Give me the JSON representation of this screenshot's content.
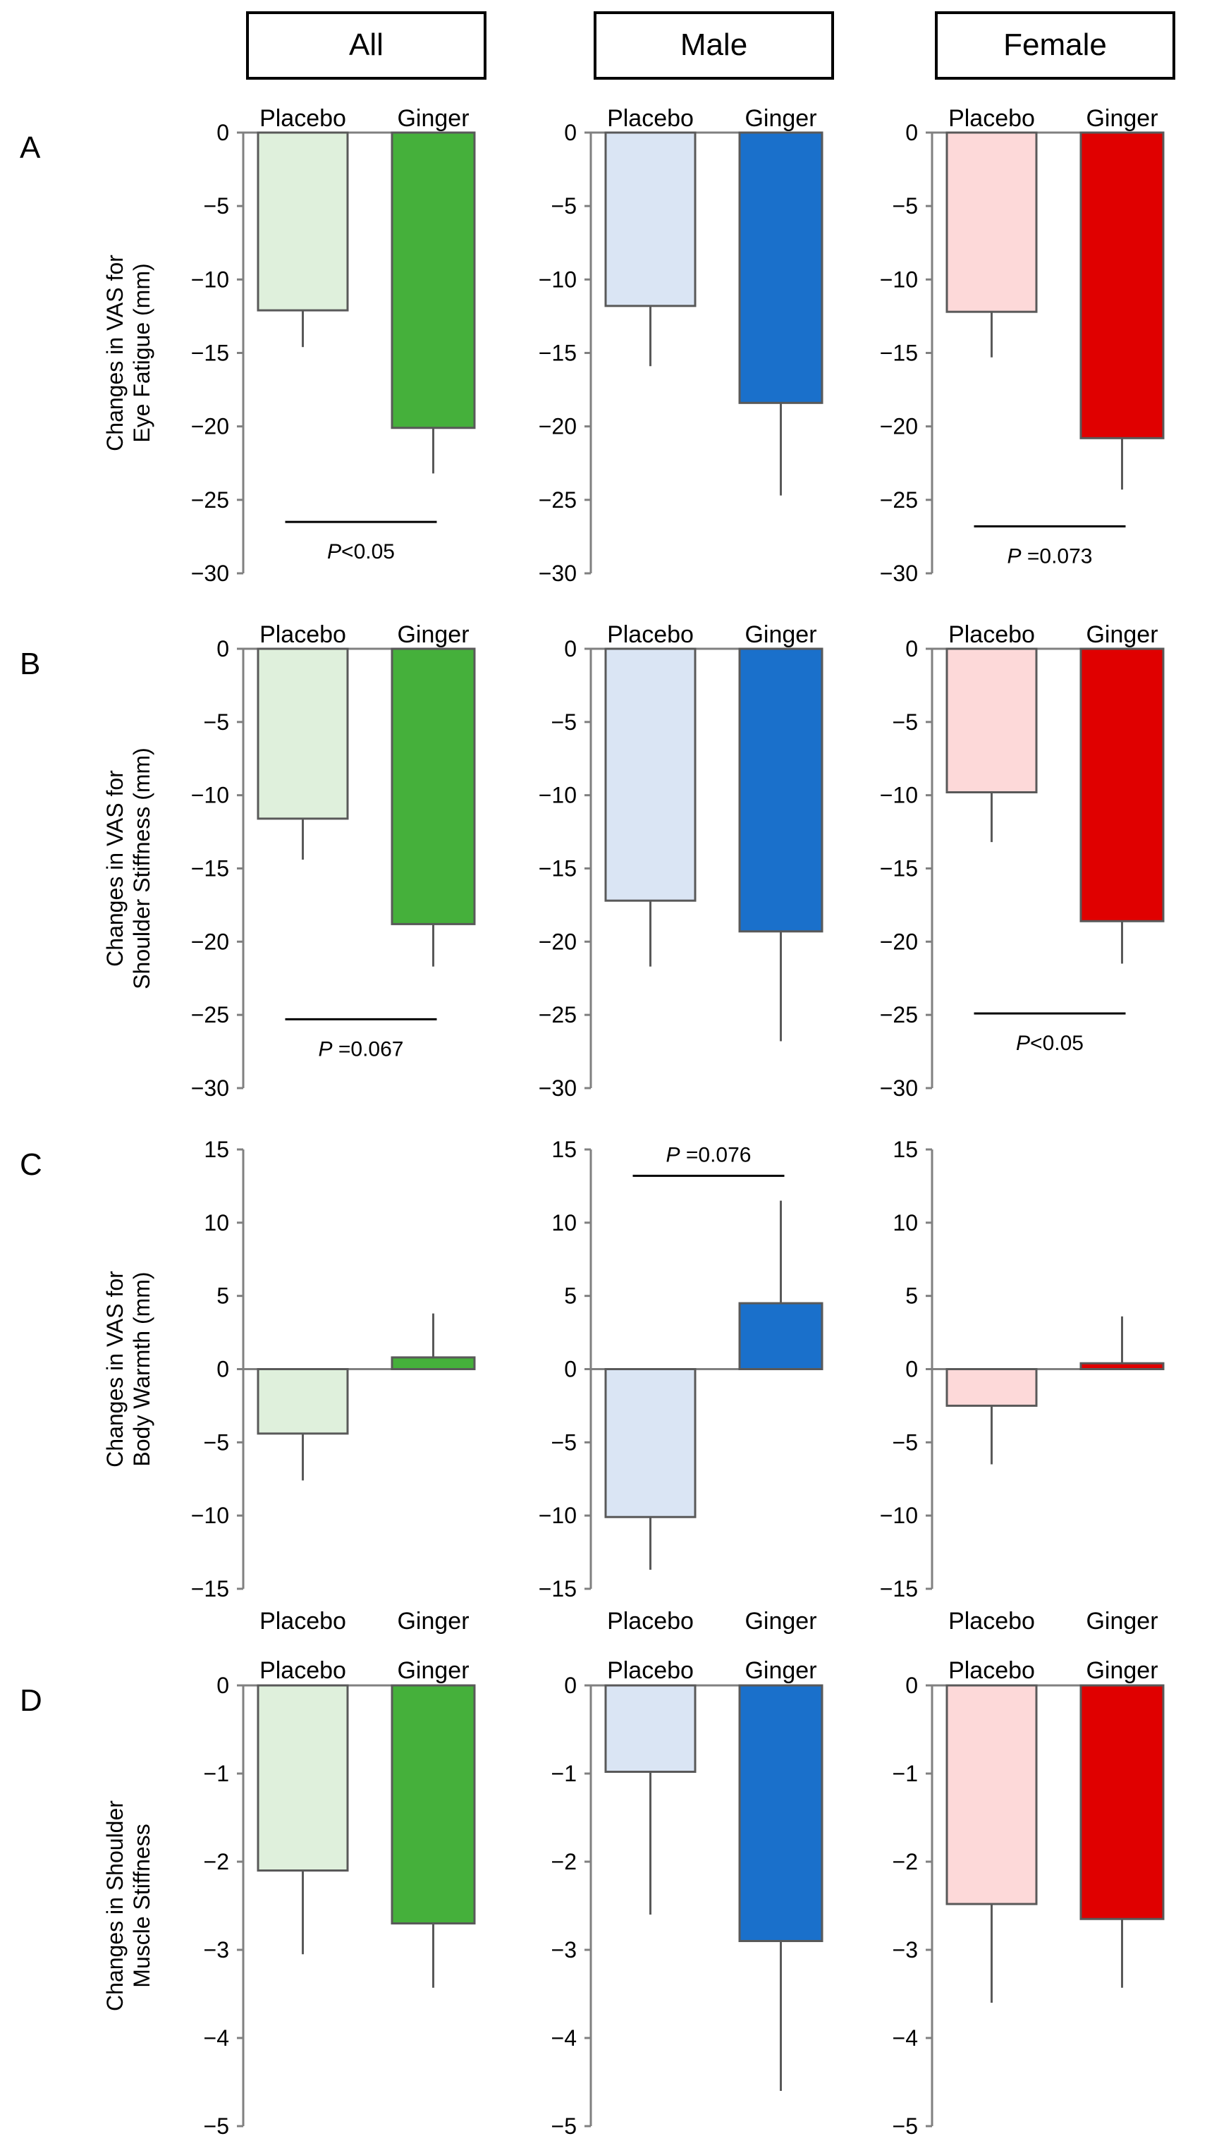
{
  "figure": {
    "column_headers": [
      "All",
      "Male",
      "Female"
    ],
    "colors": {
      "All": {
        "Placebo": "#dff0dc",
        "Ginger": "#45b03b"
      },
      "Male": {
        "Placebo": "#dae5f4",
        "Ginger": "#1a70cb"
      },
      "Female": {
        "Placebo": "#fdd9d9",
        "Ginger": "#e00000"
      },
      "outline": "#595959",
      "axis": "#808080"
    }
  },
  "chart_data": [
    {
      "panel": "A",
      "type": "bar",
      "ylabel": "Changes in VAS for Eye Fatigue (mm)",
      "ylim": [
        -30,
        0
      ],
      "ticks": [
        0,
        -5,
        -10,
        -15,
        -20,
        -25,
        -30
      ],
      "label_position": "top",
      "groups": [
        {
          "group": "All",
          "categories": [
            "Placebo",
            "Ginger"
          ],
          "values": [
            -12.1,
            -20.1
          ],
          "errors": [
            2.5,
            3.1
          ],
          "significance": {
            "text": "P<0.05",
            "italic": "P",
            "rest": "<0.05",
            "level": -26.5
          }
        },
        {
          "group": "Male",
          "categories": [
            "Placebo",
            "Ginger"
          ],
          "values": [
            -11.8,
            -18.4
          ],
          "errors": [
            4.1,
            6.3
          ]
        },
        {
          "group": "Female",
          "categories": [
            "Placebo",
            "Ginger"
          ],
          "values": [
            -12.2,
            -20.8
          ],
          "errors": [
            3.1,
            3.5
          ],
          "significance": {
            "text": "P =0.073",
            "italic": "P",
            "rest": " =0.073",
            "level": -26.8
          }
        }
      ]
    },
    {
      "panel": "B",
      "type": "bar",
      "ylabel": "Changes in VAS for Shoulder Stiffness (mm)",
      "ylim": [
        -30,
        0
      ],
      "ticks": [
        0,
        -5,
        -10,
        -15,
        -20,
        -25,
        -30
      ],
      "label_position": "top",
      "groups": [
        {
          "group": "All",
          "categories": [
            "Placebo",
            "Ginger"
          ],
          "values": [
            -11.6,
            -18.8
          ],
          "errors": [
            2.8,
            2.9
          ],
          "significance": {
            "text": "P =0.067",
            "italic": "P",
            "rest": " =0.067",
            "level": -25.3
          }
        },
        {
          "group": "Male",
          "categories": [
            "Placebo",
            "Ginger"
          ],
          "values": [
            -17.2,
            -19.3
          ],
          "errors": [
            4.5,
            7.5
          ]
        },
        {
          "group": "Female",
          "categories": [
            "Placebo",
            "Ginger"
          ],
          "values": [
            -9.8,
            -18.6
          ],
          "errors": [
            3.4,
            2.9
          ],
          "significance": {
            "text": "P<0.05",
            "italic": "P",
            "rest": "<0.05",
            "level": -24.9
          }
        }
      ]
    },
    {
      "panel": "C",
      "type": "bar",
      "ylabel": "Changes in VAS for Body Warmth (mm)",
      "ylim": [
        -15,
        15
      ],
      "ticks": [
        15,
        10,
        5,
        0,
        -5,
        -10,
        -15
      ],
      "label_position": "bottom",
      "groups": [
        {
          "group": "All",
          "categories": [
            "Placebo",
            "Ginger"
          ],
          "values": [
            -4.4,
            0.8
          ],
          "errors": [
            3.2,
            3.0
          ]
        },
        {
          "group": "Male",
          "categories": [
            "Placebo",
            "Ginger"
          ],
          "values": [
            -10.1,
            4.5
          ],
          "errors": [
            3.6,
            7.0
          ],
          "significance": {
            "text": "P =0.076",
            "italic": "P",
            "rest": " =0.076",
            "level": 13.2
          }
        },
        {
          "group": "Female",
          "categories": [
            "Placebo",
            "Ginger"
          ],
          "values": [
            -2.5,
            0.4
          ],
          "errors": [
            4.0,
            3.2
          ]
        }
      ]
    },
    {
      "panel": "D",
      "type": "bar",
      "ylabel": "Changes in Shoulder Muscle Stiffness",
      "ylim": [
        -5,
        0
      ],
      "ticks": [
        0,
        -1,
        -2,
        -3,
        -4,
        -5
      ],
      "label_position": "top",
      "groups": [
        {
          "group": "All",
          "categories": [
            "Placebo",
            "Ginger"
          ],
          "values": [
            -2.1,
            -2.7
          ],
          "errors": [
            0.95,
            0.73
          ]
        },
        {
          "group": "Male",
          "categories": [
            "Placebo",
            "Ginger"
          ],
          "values": [
            -0.98,
            -2.9
          ],
          "errors": [
            1.62,
            1.7
          ]
        },
        {
          "group": "Female",
          "categories": [
            "Placebo",
            "Ginger"
          ],
          "values": [
            -2.48,
            -2.65
          ],
          "errors": [
            1.12,
            0.78
          ]
        }
      ]
    }
  ]
}
